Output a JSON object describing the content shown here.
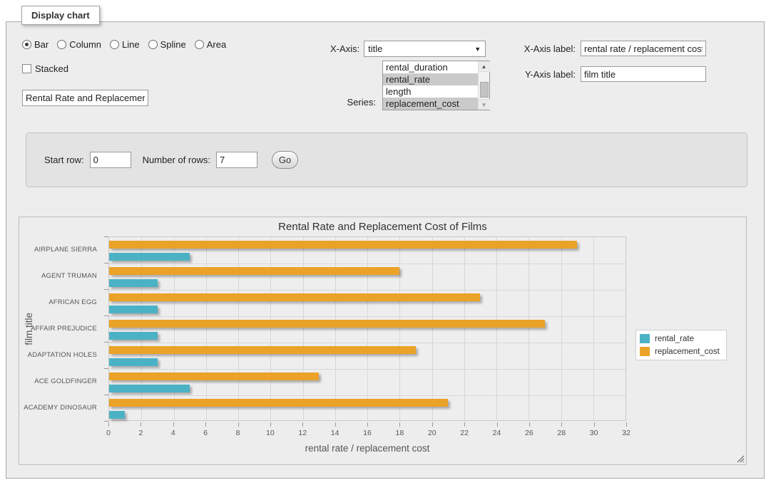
{
  "panel": {
    "legend_title": "Display chart"
  },
  "controls": {
    "chart_types": [
      "Bar",
      "Column",
      "Line",
      "Spline",
      "Area"
    ],
    "selected_type": "Bar",
    "stacked_label": "Stacked",
    "title_value": "Rental Rate and Replacement Cost of Films",
    "xaxis_label": "X-Axis:",
    "xaxis_selected": "title",
    "series_label": "Series:",
    "series_options": [
      {
        "label": "rental_duration",
        "selected": false
      },
      {
        "label": "rental_rate",
        "selected": true
      },
      {
        "label": "length",
        "selected": false
      },
      {
        "label": "replacement_cost",
        "selected": true
      }
    ],
    "xlabel_label": "X-Axis label:",
    "xlabel_value": "rental rate / replacement cost",
    "ylabel_label": "Y-Axis label:",
    "ylabel_value": "film title"
  },
  "rows": {
    "start_label": "Start row:",
    "start_value": "0",
    "count_label": "Number of rows:",
    "count_value": "7",
    "go_label": "Go"
  },
  "chart_data": {
    "type": "bar",
    "orientation": "horizontal",
    "title": "Rental Rate and Replacement Cost of Films",
    "categories": [
      "AIRPLANE SIERRA",
      "AGENT TRUMAN",
      "AFRICAN EGG",
      "AFFAIR PREJUDICE",
      "ADAPTATION HOLES",
      "ACE GOLDFINGER",
      "ACADEMY DINOSAUR"
    ],
    "series": [
      {
        "name": "rental_rate",
        "color": "#4bb2c5",
        "values": [
          4.99,
          2.99,
          2.99,
          2.99,
          2.99,
          4.99,
          0.99
        ]
      },
      {
        "name": "replacement_cost",
        "color": "#eaa228",
        "values": [
          28.99,
          17.99,
          22.99,
          26.99,
          18.99,
          12.99,
          20.99
        ]
      }
    ],
    "xlabel": "rental rate / replacement cost",
    "ylabel": "film title",
    "xlim": [
      0,
      32
    ],
    "xticks": [
      0,
      2,
      4,
      6,
      8,
      10,
      12,
      14,
      16,
      18,
      20,
      22,
      24,
      26,
      28,
      30,
      32
    ],
    "grid": true,
    "legend_position": "right"
  }
}
